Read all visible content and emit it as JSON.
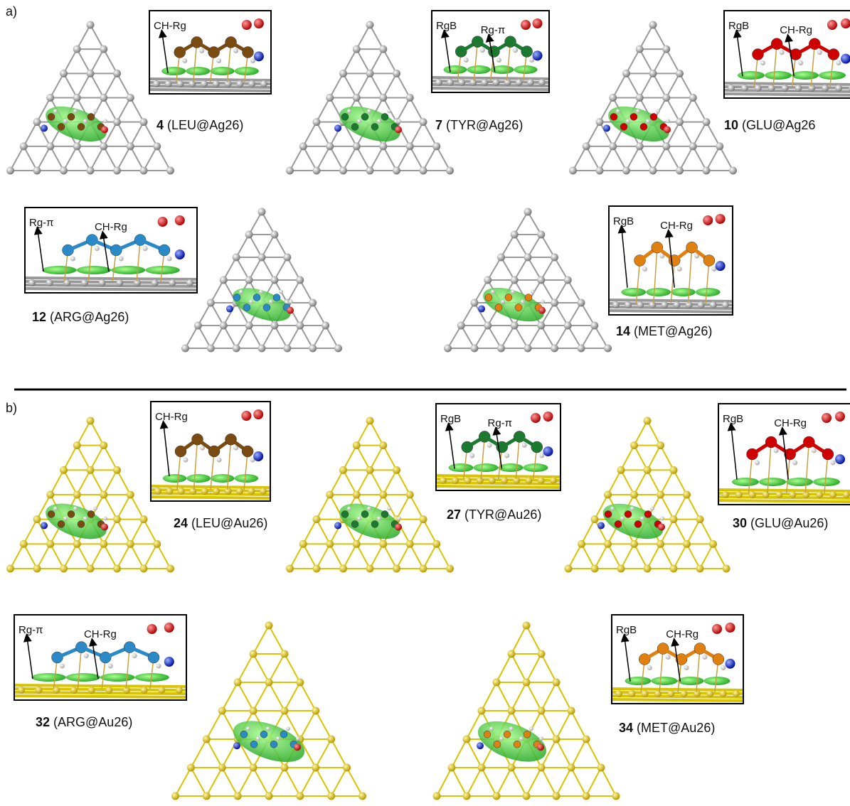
{
  "panels": [
    {
      "label": "a)",
      "items": [
        {
          "number": "4",
          "name": "(LEU@Ag26)",
          "annotations": [
            "CH-Rg"
          ]
        },
        {
          "number": "7",
          "name": "(TYR@Ag26)",
          "annotations": [
            "RgB",
            "Rg-π"
          ]
        },
        {
          "number": "10",
          "name": "(GLU@Ag26",
          "annotations": [
            "RgB",
            "CH-Rg"
          ]
        },
        {
          "number": "12",
          "name": "(ARG@Ag26)",
          "annotations": [
            "Rg-π",
            "CH-Rg"
          ]
        },
        {
          "number": "14",
          "name": "(MET@Ag26)",
          "annotations": [
            "RgB",
            "CH-Rg"
          ]
        }
      ]
    },
    {
      "label": "b)",
      "items": [
        {
          "number": "24",
          "name": "(LEU@Au26)",
          "annotations": [
            "CH-Rg"
          ]
        },
        {
          "number": "27",
          "name": "(TYR@Au26)",
          "annotations": [
            "RgB",
            "Rg-π"
          ]
        },
        {
          "number": "30",
          "name": "(GLU@Au26)",
          "annotations": [
            "RgB",
            "CH-Rg"
          ]
        },
        {
          "number": "32",
          "name": "(ARG@Au26)",
          "annotations": [
            "Rg-π",
            "CH-Rg"
          ]
        },
        {
          "number": "34",
          "name": "(MET@Au26)",
          "annotations": [
            "RgB",
            "CH-Rg"
          ]
        }
      ]
    }
  ]
}
